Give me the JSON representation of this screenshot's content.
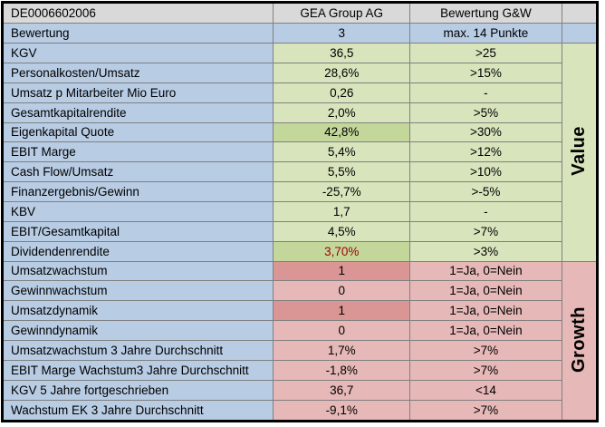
{
  "header": {
    "isin": "DE0006602006",
    "company": "GEA Group AG",
    "rating": "Bewertung G&W"
  },
  "bewertung": {
    "label": "Bewertung",
    "value": "3",
    "criteria": "max. 14 Punkte"
  },
  "value_section": {
    "label": "Value",
    "rows": [
      {
        "label": "KGV",
        "value": "36,5",
        "criteria": ">25"
      },
      {
        "label": "Personalkosten/Umsatz",
        "value": "28,6%",
        "criteria": ">15%"
      },
      {
        "label": "Umsatz p Mitarbeiter Mio Euro",
        "value": "0,26",
        "criteria": "-"
      },
      {
        "label": "Gesamtkapitalrendite",
        "value": "2,0%",
        "criteria": ">5%"
      },
      {
        "label": "Eigenkapital Quote",
        "value": "42,8%",
        "criteria": ">30%"
      },
      {
        "label": "EBIT Marge",
        "value": "5,4%",
        "criteria": ">12%"
      },
      {
        "label": "Cash Flow/Umsatz",
        "value": "5,5%",
        "criteria": ">10%"
      },
      {
        "label": "Finanzergebnis/Gewinn",
        "value": "-25,7%",
        "criteria": ">-5%"
      },
      {
        "label": "KBV",
        "value": "1,7",
        "criteria": "-"
      },
      {
        "label": "EBIT/Gesamtkapital",
        "value": "4,5%",
        "criteria": ">7%"
      },
      {
        "label": "Dividendenrendite",
        "value": "3,70%",
        "criteria": ">3%"
      }
    ]
  },
  "growth_section": {
    "label": "Growth",
    "rows": [
      {
        "label": "Umsatzwachstum",
        "value": "1",
        "criteria": "1=Ja, 0=Nein"
      },
      {
        "label": "Gewinnwachstum",
        "value": "0",
        "criteria": "1=Ja, 0=Nein"
      },
      {
        "label": "Umsatzdynamik",
        "value": "1",
        "criteria": "1=Ja, 0=Nein"
      },
      {
        "label": "Gewinndynamik",
        "value": "0",
        "criteria": "1=Ja, 0=Nein"
      },
      {
        "label": "Umsatzwachstum 3 Jahre Durchschnitt",
        "value": "1,7%",
        "criteria": ">7%"
      },
      {
        "label": "EBIT Marge Wachstum3 Jahre Durchschnitt",
        "value": "-1,8%",
        "criteria": ">7%"
      },
      {
        "label": "KGV 5 Jahre fortgeschrieben",
        "value": "36,7",
        "criteria": "<14"
      },
      {
        "label": "Wachstum EK 3 Jahre Durchschnitt",
        "value": "-9,1%",
        "criteria": ">7%"
      }
    ]
  },
  "colors": {
    "header_gray": "#d9d9d9",
    "info_blue": "#b8cce4",
    "value_green": "#d8e4bc",
    "value_green_highlight": "#c4d79b",
    "growth_pink": "#e6b8b7",
    "growth_rose": "#da9694",
    "negative_text_red": "#9c0006",
    "grid_border_gray": "#808080",
    "outer_border_black": "#000000"
  }
}
